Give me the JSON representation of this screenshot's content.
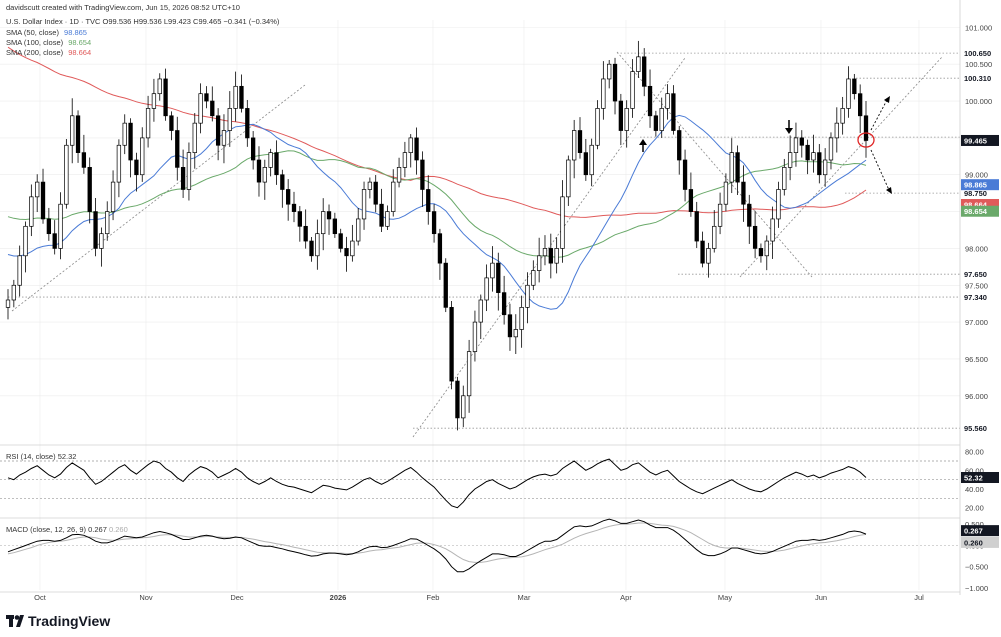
{
  "header": {
    "attribution": "davidscutt created with TradingView.com, Jun 15, 2026 08:52 UTC+10",
    "symbol_line": "U.S. Dollar Index · 1D · TVC  O99.536  H99.536  L99.423  C99.465  −0.341 (−0.34%)",
    "sma": [
      {
        "label": "SMA (50, close)",
        "value": "98.865",
        "color": "#4a7bd6"
      },
      {
        "label": "SMA (100, close)",
        "value": "98.654",
        "color": "#6aa96a"
      },
      {
        "label": "SMA (200, close)",
        "value": "98.664",
        "color": "#e05a5a"
      }
    ]
  },
  "brand": {
    "name": "TradingView"
  },
  "colors": {
    "candle": "#000000",
    "sma50": "#4a7bd6",
    "sma100": "#6aa96a",
    "sma200": "#e05a5a",
    "grid": "#ececec",
    "level": "#999999"
  },
  "chart_data": {
    "type": "line",
    "price_axis": {
      "range": [
        95.4,
        101.1
      ],
      "ticks": [
        "101.000",
        "100.500",
        "100.000",
        "99.500",
        "99.000",
        "98.500",
        "98.000",
        "97.500",
        "97.000",
        "96.500",
        "96.000"
      ]
    },
    "x_axis": {
      "ticks": [
        "Oct",
        "Nov",
        "Dec",
        "2026",
        "Feb",
        "Mar",
        "Apr",
        "May",
        "Jun",
        "Jul"
      ]
    },
    "levels": [
      {
        "value": "100.650",
        "price": 100.65
      },
      {
        "value": "100.310",
        "price": 100.31
      },
      {
        "value": "99.510",
        "price": 99.51
      },
      {
        "value": "98.750",
        "price": 98.75
      },
      {
        "value": "97.650",
        "price": 97.65
      },
      {
        "value": "97.340",
        "price": 97.34
      },
      {
        "value": "95.560",
        "price": 95.56
      }
    ],
    "badges": [
      {
        "value": "99.465",
        "price": 99.465,
        "color": "#131722"
      },
      {
        "value": "98.865",
        "price": 98.865,
        "color": "#4a7bd6"
      },
      {
        "value": "98.664",
        "price": 98.664,
        "color": "#e05a5a"
      },
      {
        "value": "98.654",
        "price": 98.654,
        "color": "#6aa96a"
      }
    ],
    "series": [
      {
        "name": "U.S. Dollar Index",
        "type": "candlestick",
        "close": [
          97.3,
          97.5,
          97.9,
          98.3,
          98.7,
          98.9,
          98.4,
          98.2,
          98.0,
          98.6,
          99.4,
          99.8,
          99.3,
          99.1,
          98.5,
          98.0,
          98.2,
          98.5,
          98.9,
          99.4,
          99.7,
          99.2,
          99.0,
          99.5,
          99.9,
          100.1,
          100.3,
          99.8,
          99.6,
          99.1,
          98.8,
          99.3,
          99.7,
          100.1,
          100.0,
          99.8,
          99.4,
          99.6,
          99.9,
          100.2,
          99.9,
          99.5,
          99.2,
          98.9,
          99.1,
          99.3,
          99.0,
          98.8,
          98.6,
          98.5,
          98.3,
          98.1,
          97.9,
          98.2,
          98.5,
          98.4,
          98.2,
          98.0,
          97.9,
          98.1,
          98.4,
          98.8,
          98.9,
          98.6,
          98.3,
          98.5,
          98.9,
          99.1,
          99.3,
          99.5,
          99.2,
          98.8,
          98.5,
          98.2,
          97.8,
          97.2,
          96.2,
          95.7,
          96.0,
          96.6,
          97.0,
          97.3,
          97.6,
          97.8,
          97.4,
          97.1,
          96.8,
          96.9,
          97.2,
          97.5,
          97.7,
          97.9,
          98.0,
          97.8,
          98.0,
          98.7,
          99.2,
          99.6,
          99.3,
          99.0,
          99.4,
          99.9,
          100.3,
          100.5,
          100.0,
          99.6,
          99.9,
          100.4,
          100.6,
          100.2,
          99.8,
          99.6,
          99.9,
          100.1,
          99.6,
          99.2,
          98.8,
          98.5,
          98.1,
          97.8,
          98.0,
          98.3,
          98.6,
          98.9,
          99.3,
          98.9,
          98.6,
          98.3,
          98.0,
          97.9,
          98.1,
          98.4,
          98.8,
          99.1,
          99.3,
          99.5,
          99.4,
          99.2,
          99.3,
          99.0,
          99.2,
          99.5,
          99.7,
          99.9,
          100.3,
          100.1,
          99.8,
          99.465
        ]
      },
      {
        "name": "SMA (50, close)",
        "value": "98.865"
      },
      {
        "name": "SMA (100, close)",
        "value": "98.654"
      },
      {
        "name": "SMA (200, close)",
        "value": "98.664"
      }
    ],
    "rsi": {
      "label": "RSI (14, close)",
      "value": "52.32",
      "ticks": [
        "80.00",
        "60.00",
        "40.00",
        "20.00"
      ],
      "values": [
        52,
        50,
        55,
        58,
        62,
        65,
        60,
        55,
        52,
        56,
        63,
        68,
        64,
        60,
        52,
        45,
        48,
        53,
        58,
        63,
        66,
        60,
        56,
        61,
        66,
        70,
        68,
        62,
        58,
        52,
        48,
        55,
        60,
        64,
        62,
        58,
        52,
        55,
        58,
        62,
        58,
        52,
        48,
        45,
        48,
        52,
        48,
        45,
        43,
        42,
        40,
        38,
        36,
        40,
        44,
        43,
        41,
        40,
        39,
        42,
        46,
        50,
        52,
        48,
        45,
        48,
        52,
        56,
        60,
        63,
        58,
        52,
        47,
        42,
        35,
        28,
        22,
        20,
        26,
        34,
        40,
        44,
        48,
        50,
        46,
        43,
        40,
        42,
        46,
        50,
        53,
        55,
        56,
        54,
        56,
        62,
        66,
        70,
        65,
        60,
        63,
        67,
        70,
        72,
        66,
        60,
        62,
        66,
        68,
        63,
        58,
        55,
        58,
        60,
        54,
        48,
        44,
        40,
        37,
        35,
        38,
        41,
        44,
        47,
        50,
        46,
        43,
        40,
        38,
        37,
        40,
        44,
        48,
        52,
        55,
        58,
        56,
        53,
        55,
        52,
        54,
        57,
        59,
        61,
        64,
        62,
        58,
        52.32
      ]
    },
    "macd": {
      "label": "MACD (close, 12, 26, 9)",
      "macd_value": "0.267",
      "signal_value": "0.260",
      "ticks": [
        "0.500",
        "0.000",
        "−0.500",
        "−1.000"
      ],
      "macd": [
        -0.15,
        -0.1,
        -0.05,
        0,
        0.05,
        0.1,
        0.12,
        0.12,
        0.1,
        0.12,
        0.18,
        0.25,
        0.26,
        0.24,
        0.18,
        0.1,
        0.06,
        0.06,
        0.1,
        0.16,
        0.22,
        0.2,
        0.18,
        0.2,
        0.25,
        0.3,
        0.33,
        0.3,
        0.26,
        0.2,
        0.14,
        0.14,
        0.18,
        0.22,
        0.24,
        0.22,
        0.18,
        0.16,
        0.17,
        0.2,
        0.18,
        0.12,
        0.06,
        0,
        -0.02,
        -0.02,
        -0.05,
        -0.08,
        -0.12,
        -0.15,
        -0.18,
        -0.22,
        -0.25,
        -0.24,
        -0.2,
        -0.18,
        -0.18,
        -0.2,
        -0.22,
        -0.2,
        -0.15,
        -0.08,
        -0.03,
        -0.02,
        -0.05,
        -0.04,
        0,
        0.05,
        0.1,
        0.16,
        0.15,
        0.08,
        0,
        -0.08,
        -0.18,
        -0.32,
        -0.5,
        -0.62,
        -0.62,
        -0.55,
        -0.45,
        -0.36,
        -0.28,
        -0.2,
        -0.2,
        -0.22,
        -0.26,
        -0.26,
        -0.2,
        -0.12,
        -0.04,
        0.04,
        0.1,
        0.1,
        0.14,
        0.24,
        0.34,
        0.44,
        0.46,
        0.44,
        0.46,
        0.52,
        0.58,
        0.62,
        0.58,
        0.52,
        0.52,
        0.56,
        0.6,
        0.56,
        0.48,
        0.42,
        0.42,
        0.42,
        0.36,
        0.26,
        0.14,
        0.02,
        -0.1,
        -0.2,
        -0.24,
        -0.24,
        -0.2,
        -0.14,
        -0.06,
        -0.06,
        -0.1,
        -0.14,
        -0.18,
        -0.2,
        -0.18,
        -0.14,
        -0.08,
        -0.02,
        0.04,
        0.1,
        0.12,
        0.12,
        0.14,
        0.12,
        0.14,
        0.18,
        0.22,
        0.26,
        0.32,
        0.34,
        0.32,
        0.267
      ],
      "signal": [
        -0.2,
        -0.17,
        -0.13,
        -0.09,
        -0.05,
        0,
        0.04,
        0.07,
        0.09,
        0.1,
        0.12,
        0.15,
        0.18,
        0.2,
        0.2,
        0.18,
        0.15,
        0.13,
        0.12,
        0.13,
        0.15,
        0.16,
        0.17,
        0.18,
        0.19,
        0.21,
        0.24,
        0.25,
        0.25,
        0.24,
        0.22,
        0.2,
        0.2,
        0.2,
        0.21,
        0.21,
        0.2,
        0.19,
        0.19,
        0.19,
        0.19,
        0.17,
        0.15,
        0.12,
        0.09,
        0.07,
        0.04,
        0.02,
        -0.01,
        -0.04,
        -0.07,
        -0.1,
        -0.13,
        -0.16,
        -0.17,
        -0.17,
        -0.18,
        -0.18,
        -0.19,
        -0.19,
        -0.18,
        -0.16,
        -0.13,
        -0.11,
        -0.1,
        -0.08,
        -0.06,
        -0.04,
        -0.01,
        0.02,
        0.05,
        0.06,
        0.05,
        0.02,
        -0.02,
        -0.08,
        -0.16,
        -0.25,
        -0.33,
        -0.38,
        -0.4,
        -0.4,
        -0.38,
        -0.35,
        -0.32,
        -0.3,
        -0.29,
        -0.28,
        -0.27,
        -0.24,
        -0.2,
        -0.15,
        -0.1,
        -0.06,
        -0.02,
        0.03,
        0.1,
        0.17,
        0.23,
        0.28,
        0.32,
        0.36,
        0.41,
        0.45,
        0.48,
        0.5,
        0.5,
        0.51,
        0.53,
        0.53,
        0.52,
        0.5,
        0.48,
        0.47,
        0.45,
        0.41,
        0.36,
        0.3,
        0.22,
        0.14,
        0.06,
        0,
        -0.04,
        -0.06,
        -0.06,
        -0.06,
        -0.07,
        -0.09,
        -0.11,
        -0.13,
        -0.14,
        -0.14,
        -0.13,
        -0.11,
        -0.08,
        -0.04,
        -0.01,
        0.02,
        0.04,
        0.06,
        0.07,
        0.09,
        0.11,
        0.14,
        0.17,
        0.21,
        0.24,
        0.26
      ]
    }
  }
}
